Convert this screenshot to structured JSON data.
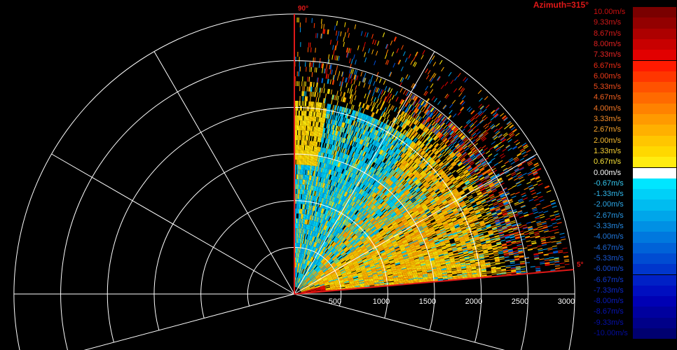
{
  "header": {
    "azimuth_label": "Azimuth=315°"
  },
  "elevation": {
    "top_label": "90°",
    "low_label": "5°"
  },
  "range_ticks": [
    "500",
    "1000",
    "1500",
    "2000",
    "2500",
    "3000"
  ],
  "legend": {
    "unit": "m/s",
    "entries": [
      {
        "label": "10.00m/s",
        "color": "#7a0000",
        "text": "#cc1010"
      },
      {
        "label": "9.33m/s",
        "color": "#930000",
        "text": "#d01818"
      },
      {
        "label": "8.67m/s",
        "color": "#ad0000",
        "text": "#d81a1a"
      },
      {
        "label": "8.00m/s",
        "color": "#c80000",
        "text": "#e02020"
      },
      {
        "label": "7.33m/s",
        "color": "#e20000",
        "text": "#e82424"
      },
      {
        "label": "6.67m/s",
        "color": "#ff1a00",
        "text": "#ee2a14"
      },
      {
        "label": "6.00m/s",
        "color": "#ff3600",
        "text": "#f03a18"
      },
      {
        "label": "5.33m/s",
        "color": "#ff5200",
        "text": "#f24c1c"
      },
      {
        "label": "4.67m/s",
        "color": "#ff6a00",
        "text": "#f46020"
      },
      {
        "label": "4.00m/s",
        "color": "#ff8200",
        "text": "#f47624"
      },
      {
        "label": "3.33m/s",
        "color": "#ff9a00",
        "text": "#f68c28"
      },
      {
        "label": "2.67m/s",
        "color": "#ffb000",
        "text": "#f8a42c"
      },
      {
        "label": "2.00m/s",
        "color": "#ffc600",
        "text": "#f8bc30"
      },
      {
        "label": "1.33m/s",
        "color": "#ffd800",
        "text": "#f8d034"
      },
      {
        "label": "0.67m/s",
        "color": "#ffec10",
        "text": "#f8e238"
      },
      {
        "label": "0.00m/s",
        "color": "#ffffff",
        "text": "#ffffff"
      },
      {
        "label": "-0.67m/s",
        "color": "#00e6ff",
        "text": "#34c8f0"
      },
      {
        "label": "-1.33m/s",
        "color": "#00d0f8",
        "text": "#30b8ec"
      },
      {
        "label": "-2.00m/s",
        "color": "#00bcf0",
        "text": "#2ca8e8"
      },
      {
        "label": "-2.67m/s",
        "color": "#00a6ea",
        "text": "#2898e4"
      },
      {
        "label": "-3.33m/s",
        "color": "#0090e4",
        "text": "#2488e0"
      },
      {
        "label": "-4.00m/s",
        "color": "#0078de",
        "text": "#2078dc"
      },
      {
        "label": "-4.67m/s",
        "color": "#0062d8",
        "text": "#1c68d8"
      },
      {
        "label": "-5.33m/s",
        "color": "#004cd2",
        "text": "#1858d4"
      },
      {
        "label": "-6.00m/s",
        "color": "#0036cc",
        "text": "#1448d0"
      },
      {
        "label": "-6.67m/s",
        "color": "#0020c6",
        "text": "#1038cc"
      },
      {
        "label": "-7.33m/s",
        "color": "#000ec0",
        "text": "#0c28c8"
      },
      {
        "label": "-8.00m/s",
        "color": "#0000b4",
        "text": "#0a1cc0"
      },
      {
        "label": "-8.67m/s",
        "color": "#00009e",
        "text": "#0814b4"
      },
      {
        "label": "-9.33m/s",
        "color": "#000088",
        "text": "#0610a8"
      },
      {
        "label": "-10.00m/s",
        "color": "#000070",
        "text": "#040c9c"
      }
    ]
  }
}
